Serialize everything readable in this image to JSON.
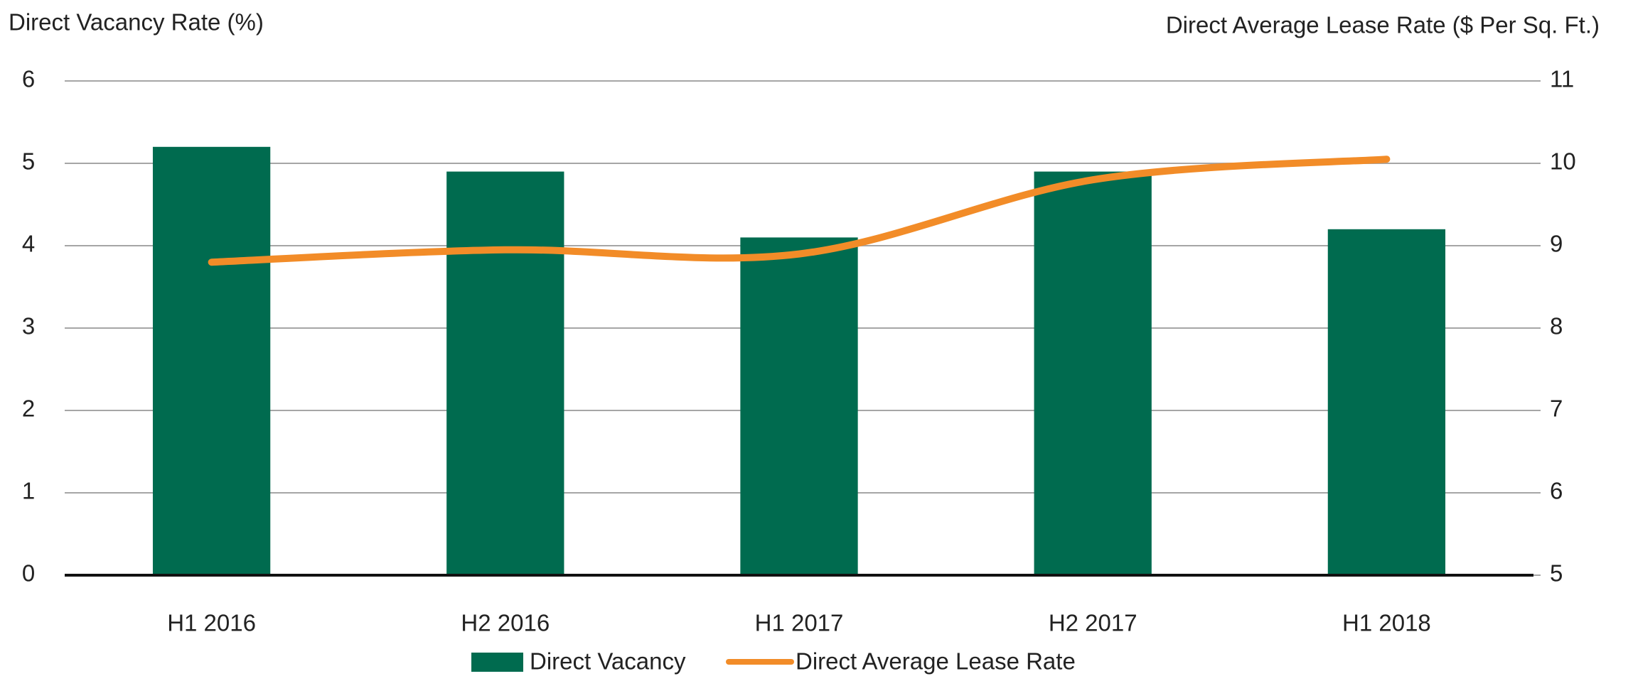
{
  "chart_data": {
    "type": "bar",
    "y_label": "Direct Vacancy Rate (%)",
    "y2_label": "Direct Average Lease Rate ($ Per Sq. Ft.)",
    "categories": [
      "H1 2016",
      "H2 2016",
      "H1 2017",
      "H2 2017",
      "H1 2018"
    ],
    "series": [
      {
        "name": "Direct Vacancy",
        "color": "#006b4f",
        "values": [
          5.2,
          4.9,
          4.1,
          4.9,
          4.2
        ]
      },
      {
        "name": "Direct Average Lease Rate",
        "color": "#f28c28",
        "type": "line",
        "axis": "y2",
        "values": [
          8.8,
          8.95,
          8.9,
          9.8,
          10.05
        ]
      }
    ],
    "ylim": [
      0,
      6
    ],
    "yticks": [
      0,
      1,
      2,
      3,
      4,
      5,
      6
    ],
    "y2lim": [
      5,
      11
    ],
    "y2ticks": [
      5,
      6,
      7,
      8,
      9,
      10,
      11
    ],
    "grid": true,
    "legend": "bottom"
  }
}
